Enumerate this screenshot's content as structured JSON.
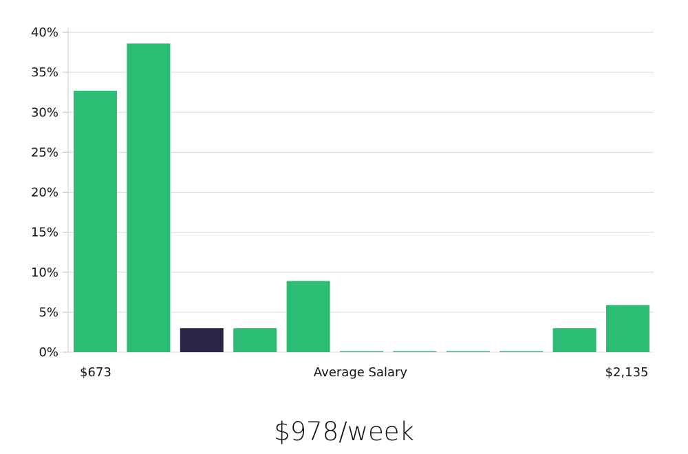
{
  "chart_data": {
    "type": "bar",
    "title": "",
    "xlabel": "Average Salary",
    "ylabel": "",
    "x_range_labels": {
      "min": "$673",
      "max": "$2,135"
    },
    "y_ticks": [
      "0%",
      "5%",
      "10%",
      "15%",
      "20%",
      "25%",
      "30%",
      "35%",
      "40%"
    ],
    "ylim": [
      0,
      40
    ],
    "grid": true,
    "values": [
      32.7,
      38.6,
      3.0,
      3.0,
      8.9,
      0,
      0,
      0,
      0,
      3.0,
      5.9
    ],
    "highlight_index": 2,
    "colors": {
      "bar": "#2bbd74",
      "highlight": "#2b2548",
      "grid": "#d9d9d9",
      "axis": "#bdbdbd"
    }
  },
  "summary": {
    "salary_text": "$978/week"
  }
}
